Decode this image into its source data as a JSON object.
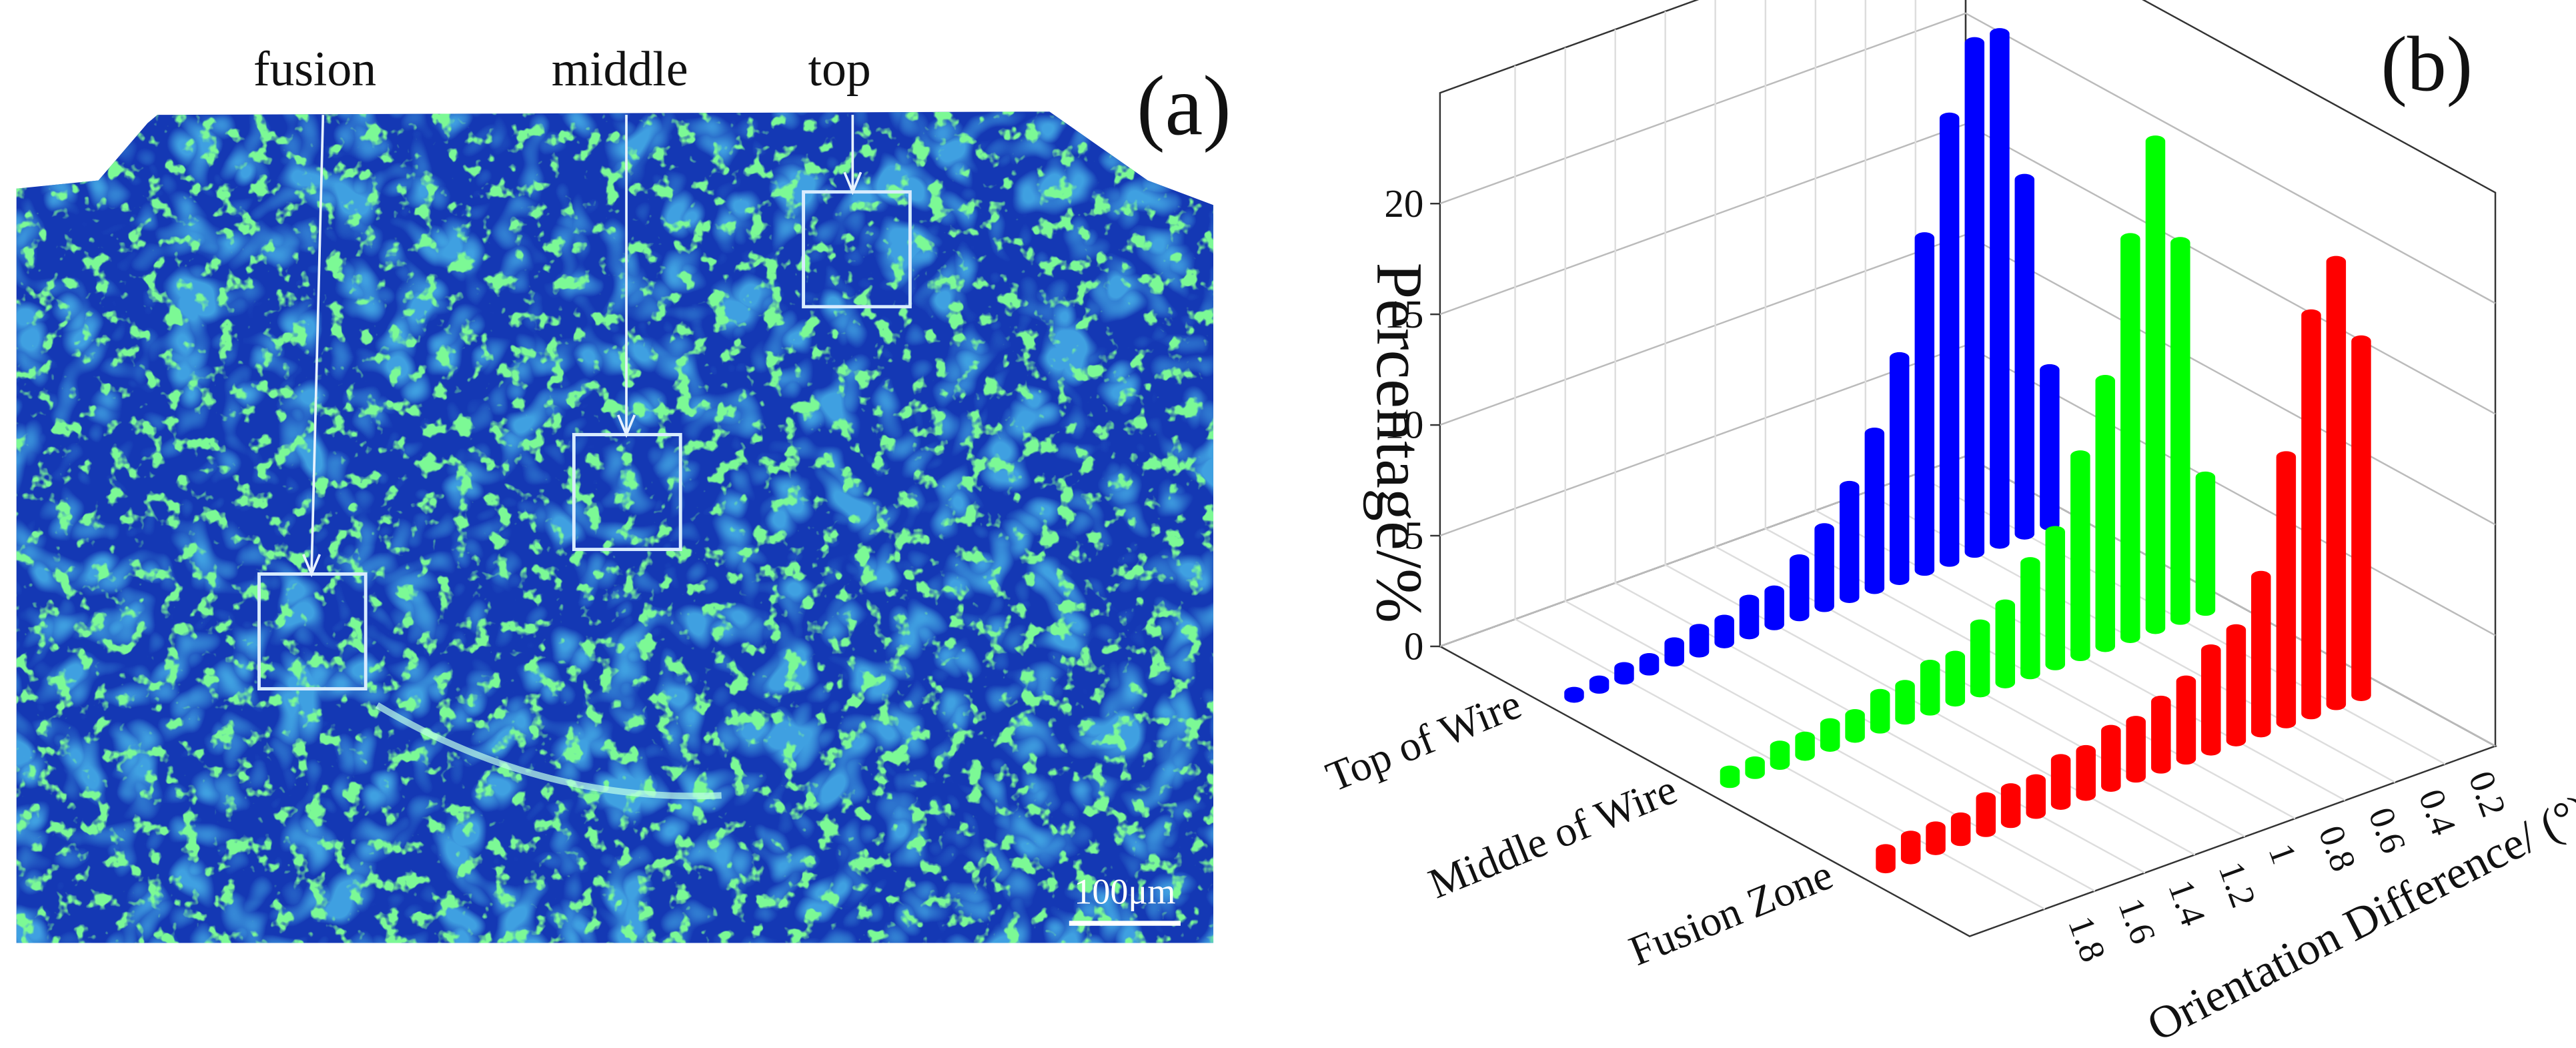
{
  "panel_a": {
    "label": "(a)",
    "annotations": [
      "fusion",
      "middle",
      "top"
    ],
    "scale_bar": "100μm"
  },
  "chart_data": {
    "type": "bar3d",
    "panel_label": "(b)",
    "y_label": "Percentage/%",
    "x_label": "Orientation Difference/ (°)",
    "x": [
      0.1,
      0.2,
      0.3,
      0.4,
      0.5,
      0.6,
      0.7,
      0.8,
      0.9,
      1.0,
      1.1,
      1.2,
      1.3,
      1.4,
      1.5,
      1.6,
      1.7,
      1.8,
      1.9,
      2.0
    ],
    "xlim": [
      0,
      2.1
    ],
    "xticks": [
      0.2,
      0.4,
      0.6,
      0.8,
      1.0,
      1.2,
      1.4,
      1.6,
      1.8
    ],
    "ylim": [
      0,
      25
    ],
    "yticks": [
      0,
      5,
      10,
      15,
      20
    ],
    "grid": true,
    "series": [
      {
        "name": "Top of Wire",
        "color": "#0000ff",
        "values": [
          7,
          16,
          23,
          23,
          20,
          15,
          10,
          7,
          5,
          3.5,
          2.5,
          1.5,
          1.5,
          1,
          1,
          0.8,
          0.5,
          0.5,
          0.3,
          0.2
        ]
      },
      {
        "name": "Middle of Wire",
        "color": "#00ff00",
        "values": [
          6,
          17,
          22,
          18,
          12,
          9,
          6,
          5,
          3.5,
          3,
          2,
          2,
          1.5,
          1.5,
          1,
          1,
          0.8,
          0.8,
          0.5,
          0.5
        ]
      },
      {
        "name": "Fusion Zone",
        "color": "#ff0000",
        "values": [
          16,
          20,
          18,
          12,
          7,
          5,
          4.5,
          3.5,
          3,
          2.5,
          2.5,
          2,
          2,
          1.5,
          1.5,
          1.5,
          1,
          1,
          1,
          0.8
        ]
      }
    ]
  }
}
